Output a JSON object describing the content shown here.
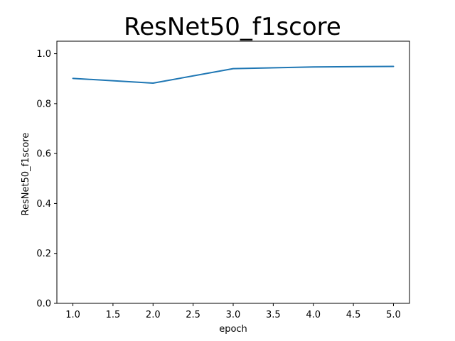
{
  "chart_data": {
    "type": "line",
    "title": "ResNet50_f1score",
    "xlabel": "epoch",
    "ylabel": "ResNet50_f1score",
    "xlim": [
      0.8,
      5.2
    ],
    "ylim": [
      0.0,
      1.05
    ],
    "xticks": [
      1.0,
      1.5,
      2.0,
      2.5,
      3.0,
      3.5,
      4.0,
      4.5,
      5.0
    ],
    "xtick_labels": [
      "1.0",
      "1.5",
      "2.0",
      "2.5",
      "3.0",
      "3.5",
      "4.0",
      "4.5",
      "5.0"
    ],
    "yticks": [
      0.0,
      0.2,
      0.4,
      0.6,
      0.8,
      1.0
    ],
    "ytick_labels": [
      "0.0",
      "0.2",
      "0.4",
      "0.6",
      "0.8",
      "1.0"
    ],
    "grid": false,
    "series": [
      {
        "color": "#1f77b4",
        "x": [
          1,
          2,
          3,
          4,
          5
        ],
        "values": [
          0.901,
          0.882,
          0.94,
          0.947,
          0.949
        ]
      }
    ]
  }
}
